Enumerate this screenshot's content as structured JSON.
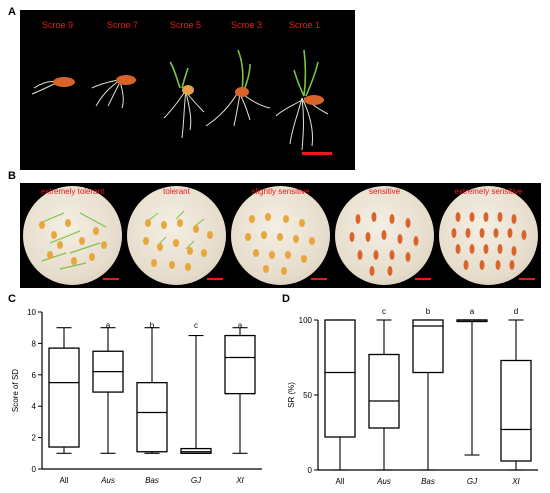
{
  "panels": {
    "a": "A",
    "b": "B",
    "c": "C",
    "d": "D"
  },
  "panel_a": {
    "scores": [
      "Scroe 9",
      "Scroe 7",
      "Scroe 5",
      "Scroe 3",
      "Scroe 1"
    ]
  },
  "panel_b": {
    "dishes": [
      "extremely tolerant",
      "tolerant",
      "slightly sensitive",
      "sensitive",
      "extremely sensitive"
    ]
  },
  "colors": {
    "label_red": "#e61b1b",
    "seed": "#d9642a",
    "root": "#e8e2d6",
    "shoot": "#7cc243"
  },
  "chart_data": [
    {
      "type": "box",
      "ylabel": "Score of SD",
      "ylim": [
        0,
        10
      ],
      "yticks": [
        "0",
        "2",
        "4",
        "6",
        "8",
        "10"
      ],
      "categories": [
        "All",
        "Aus",
        "Bas",
        "GJ",
        "XI"
      ],
      "significance": [
        "",
        "a",
        "b",
        "c",
        "a"
      ],
      "boxes": [
        {
          "min": 1,
          "q1": 1.4,
          "median": 5.5,
          "q3": 7.7,
          "max": 9
        },
        {
          "min": 1,
          "q1": 4.9,
          "median": 6.2,
          "q3": 7.5,
          "max": 9
        },
        {
          "min": 1,
          "q1": 1.1,
          "median": 3.6,
          "q3": 5.5,
          "max": 9
        },
        {
          "min": 1,
          "q1": 1.0,
          "median": 1.1,
          "q3": 1.3,
          "max": 8.5
        },
        {
          "min": 1,
          "q1": 4.8,
          "median": 7.1,
          "q3": 8.5,
          "max": 9
        }
      ]
    },
    {
      "type": "box",
      "ylabel": "SR (%)",
      "ylim": [
        0,
        100
      ],
      "yticks": [
        "0",
        "50",
        "100"
      ],
      "categories": [
        "All",
        "Aus",
        "Bas",
        "GJ",
        "XI"
      ],
      "significance": [
        "",
        "c",
        "b",
        "a",
        "d"
      ],
      "boxes": [
        {
          "min": 0,
          "q1": 22,
          "median": 65,
          "q3": 100,
          "max": 100
        },
        {
          "min": 0,
          "q1": 28,
          "median": 46,
          "q3": 77,
          "max": 100
        },
        {
          "min": 0,
          "q1": 65,
          "median": 96,
          "q3": 100,
          "max": 100
        },
        {
          "min": 10,
          "q1": 100,
          "median": 100,
          "q3": 100,
          "max": 100
        },
        {
          "min": 0,
          "q1": 6,
          "median": 27,
          "q3": 73,
          "max": 100
        }
      ]
    }
  ]
}
